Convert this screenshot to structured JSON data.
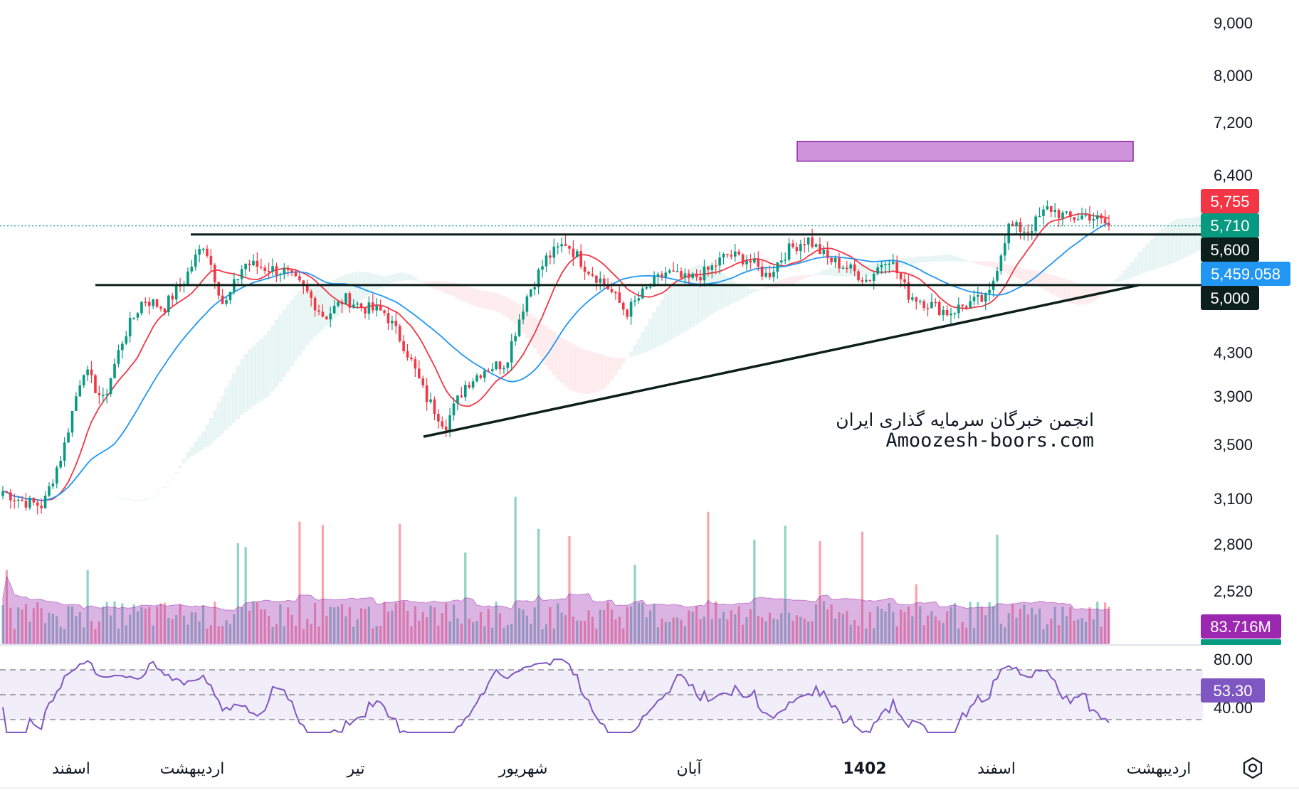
{
  "chart_data": {
    "type": "candlestick",
    "price_axis": {
      "scale": "log",
      "ticks": [
        "9,000",
        "8,000",
        "7,200",
        "6,400",
        "4,300",
        "3,900",
        "3,500",
        "3,100",
        "2,800",
        "2,520"
      ],
      "tick_values": [
        9000,
        8000,
        7200,
        6400,
        4300,
        3900,
        3500,
        3100,
        2800,
        2520
      ],
      "range": [
        2300,
        9400
      ]
    },
    "time_axis": {
      "labels": [
        {
          "text": "اسفند",
          "bold": false
        },
        {
          "text": "اردیبهشت",
          "bold": false
        },
        {
          "text": "تیر",
          "bold": false
        },
        {
          "text": "شهریور",
          "bold": false
        },
        {
          "text": "آبان",
          "bold": false
        },
        {
          "text": "1402",
          "bold": true
        },
        {
          "text": "اسفند",
          "bold": false
        },
        {
          "text": "اردیبهشت",
          "bold": false
        }
      ]
    },
    "price_tags": [
      {
        "value": "5,755",
        "color": "#f23645",
        "price": 5755
      },
      {
        "value": "5,710",
        "color": "#089981",
        "price": 5710
      },
      {
        "value": "5,600",
        "color": "#0c1f1a",
        "price": 5600
      },
      {
        "value": "5,459.058",
        "color": "#2196f3",
        "price": 5459.058
      },
      {
        "value": "5,000",
        "color": "#0c1f1a",
        "price": 5000
      }
    ],
    "volume": {
      "last_label": "83.716M",
      "label_color": "#9c27b0"
    },
    "rsi": {
      "last_value": "53.30",
      "levels": [
        "80.00",
        "40.00"
      ],
      "line_color": "#7e57c2"
    },
    "price_path": [
      3150,
      3080,
      3050,
      3450,
      4150,
      3850,
      4450,
      4850,
      4750,
      5050,
      5500,
      4750,
      5250,
      5200,
      5150,
      4950,
      4650,
      4850,
      4750,
      4700,
      4350,
      3900,
      3650,
      4000,
      4150,
      4200,
      4850,
      5300,
      5500,
      5200,
      5000,
      4700,
      4950,
      5150,
      5050,
      5150,
      5350,
      5300,
      5100,
      5400,
      5550,
      5300,
      5200,
      5050,
      5350,
      4900,
      4800,
      4700,
      4800,
      4850,
      5700,
      5650,
      5950,
      5800,
      5850,
      5710
    ],
    "resistance_levels": [
      5600,
      5000
    ],
    "target_zone": [
      6600,
      6900
    ],
    "trendline": {
      "from": 3560,
      "to": 5000
    },
    "last_candle": {
      "open": 5755,
      "close": 5710
    }
  },
  "colors": {
    "up": "#089981",
    "down": "#f23645",
    "ma_fast": "#f23645",
    "ma_slow": "#2196f3",
    "target_zone": "#ce93d8",
    "level_line": "#0c1f1a"
  },
  "watermark": {
    "line1": "انجمن خبرگان سرمایه گذاری ایران",
    "line2": "Amoozesh-boors.com"
  },
  "icons": {
    "settings": "settings-icon"
  }
}
